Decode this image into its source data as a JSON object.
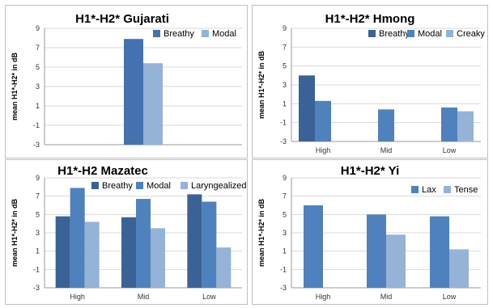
{
  "chart_data": [
    {
      "type": "bar",
      "title": "H1*-H2* Gujarati",
      "ylabel": "mean H1*-H2* in dB",
      "xlabel": "",
      "ylim": [
        -3,
        9
      ],
      "yticks": [
        "9",
        "7",
        "5",
        "3",
        "1",
        "-1",
        "-3"
      ],
      "categories": [
        ""
      ],
      "series": [
        {
          "name": "Breathy",
          "color": "#4472b0",
          "values": [
            7.9
          ]
        },
        {
          "name": "Modal",
          "color": "#95b3d7",
          "values": [
            5.4
          ]
        }
      ],
      "legend": "top-right",
      "grid": true
    },
    {
      "type": "bar",
      "title": "H1*-H2* Hmong",
      "ylabel": "mean H1*-H2* in dB",
      "xlabel": "",
      "ylim": [
        -3,
        9
      ],
      "yticks": [
        "9",
        "7",
        "5",
        "3",
        "1",
        "-1",
        "-3"
      ],
      "categories": [
        "High",
        "Mid",
        "Low"
      ],
      "series": [
        {
          "name": "Breathy",
          "color": "#3a6296",
          "values": [
            4.0,
            null,
            null
          ]
        },
        {
          "name": "Modal",
          "color": "#4f81bd",
          "values": [
            1.3,
            0.4,
            0.6
          ]
        },
        {
          "name": "Creaky",
          "color": "#95b3d7",
          "values": [
            null,
            null,
            0.2
          ]
        }
      ],
      "legend": "top-right",
      "grid": true
    },
    {
      "type": "bar",
      "title": "H1*-H2 Mazatec",
      "ylabel": "mean H1*-H2* in dB",
      "xlabel": "",
      "ylim": [
        -3,
        9
      ],
      "yticks": [
        "9",
        "7",
        "5",
        "3",
        "1",
        "-1",
        "-3"
      ],
      "categories": [
        "High",
        "Mid",
        "Low"
      ],
      "series": [
        {
          "name": "Breathy",
          "color": "#3a6296",
          "values": [
            4.8,
            4.7,
            7.2
          ]
        },
        {
          "name": "Modal",
          "color": "#4f81bd",
          "values": [
            7.9,
            6.7,
            6.4
          ]
        },
        {
          "name": "Laryngealized",
          "color": "#95b3d7",
          "values": [
            4.2,
            3.5,
            1.4
          ]
        }
      ],
      "legend": "top-right",
      "grid": true
    },
    {
      "type": "bar",
      "title": "H1*-H2* Yi",
      "ylabel": "mean H1*-H2* in dB",
      "xlabel": "",
      "ylim": [
        -3,
        9
      ],
      "yticks": [
        "9",
        "7",
        "5",
        "3",
        "1",
        "-1",
        "-3"
      ],
      "categories": [
        "High",
        "Mid",
        "Low"
      ],
      "series": [
        {
          "name": "Lax",
          "color": "#4f81bd",
          "values": [
            6.0,
            5.0,
            4.8
          ]
        },
        {
          "name": "Tense",
          "color": "#95b3d7",
          "values": [
            null,
            2.8,
            1.2
          ]
        }
      ],
      "legend": "top-right",
      "grid": true
    }
  ]
}
